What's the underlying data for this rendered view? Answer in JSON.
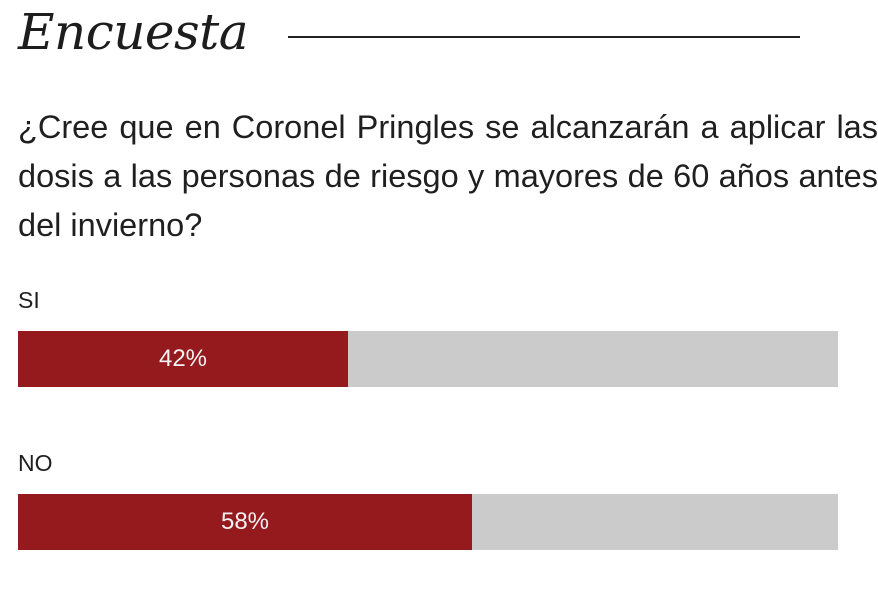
{
  "poll": {
    "title": "Encuesta",
    "question": "¿Cree que en Coronel Pringles se alcanzarán a aplicar las dosis a las personas de riesgo y mayores de 60 años antes del invierno?",
    "options": [
      {
        "label": "SI",
        "percent_label": "42%",
        "percent": 42
      },
      {
        "label": "NO",
        "percent_label": "58%",
        "percent": 58
      }
    ]
  },
  "colors": {
    "bar_fill": "#951a1e",
    "bar_track": "#cbcbcb",
    "text": "#1f1f1f",
    "percent_text": "#f2f2f2"
  }
}
